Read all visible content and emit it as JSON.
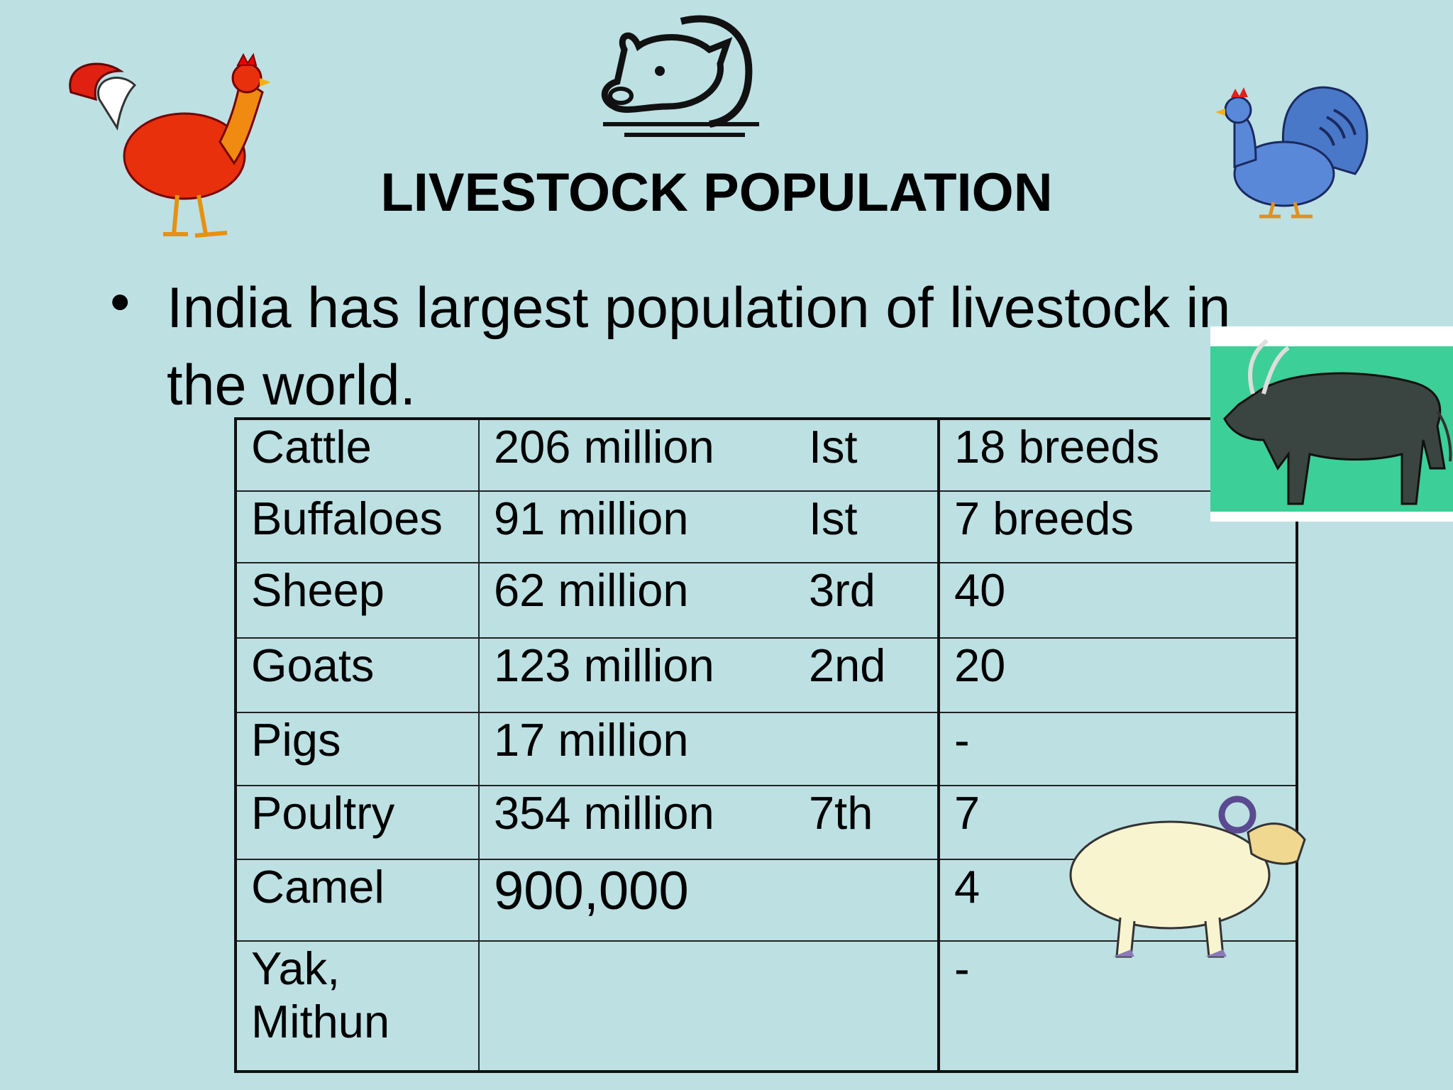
{
  "title": "LIVESTOCK POPULATION",
  "bullet": "India has largest population of livestock in the world.",
  "table": {
    "rows": [
      {
        "animal": "Cattle",
        "population": "206 million",
        "rank": "Ist",
        "breeds": "18 breeds"
      },
      {
        "animal": "Buffaloes",
        "population": "91 million",
        "rank": "Ist",
        "breeds": "7 breeds"
      },
      {
        "animal": "Sheep",
        "population": "62 million",
        "rank": "3rd",
        "breeds": "40"
      },
      {
        "animal": "Goats",
        "population": "123 million",
        "rank": "2nd",
        "breeds": "20"
      },
      {
        "animal": "Pigs",
        "population": "17 million",
        "breeds": "-"
      },
      {
        "animal": "Poultry",
        "population": "354 million",
        "rank": "7th",
        "breeds": "7"
      },
      {
        "animal": "Camel",
        "population": "900,000",
        "breeds": "4"
      },
      {
        "animal": "Yak, Mithun",
        "breeds": "-"
      }
    ]
  }
}
